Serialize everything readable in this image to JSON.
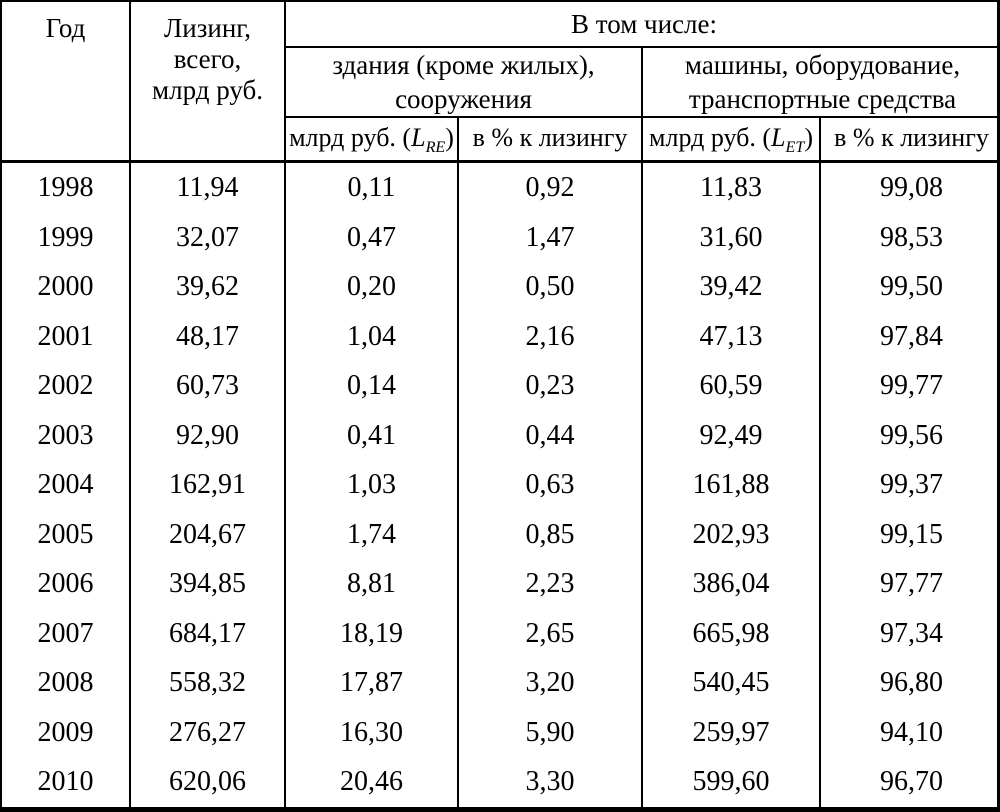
{
  "table": {
    "header": {
      "year": "Год",
      "leasing_total": "Лизинг,\nвсего,\nмлрд руб.",
      "including": "В том числе:",
      "group_buildings": "здания (кроме жилых),\nсооружения",
      "group_machines": "машины, оборудование,\nтранспортные средства",
      "sub_bln_re": {
        "prefix": "млрд руб. (",
        "var": "L",
        "sub": "RE",
        "suffix": ")"
      },
      "sub_pct_re": "в % к лизингу",
      "sub_bln_et": {
        "prefix": "млрд руб. (",
        "var": "L",
        "sub": "ET",
        "suffix": ")"
      },
      "sub_pct_et": "в % к лизингу"
    },
    "column_keys": [
      "year",
      "leasing-total",
      "buildings-bln",
      "buildings-pct",
      "machines-bln",
      "machines-pct"
    ],
    "rows": [
      [
        "1998",
        "11,94",
        "0,11",
        "0,92",
        "11,83",
        "99,08"
      ],
      [
        "1999",
        "32,07",
        "0,47",
        "1,47",
        "31,60",
        "98,53"
      ],
      [
        "2000",
        "39,62",
        "0,20",
        "0,50",
        "39,42",
        "99,50"
      ],
      [
        "2001",
        "48,17",
        "1,04",
        "2,16",
        "47,13",
        "97,84"
      ],
      [
        "2002",
        "60,73",
        "0,14",
        "0,23",
        "60,59",
        "99,77"
      ],
      [
        "2003",
        "92,90",
        "0,41",
        "0,44",
        "92,49",
        "99,56"
      ],
      [
        "2004",
        "162,91",
        "1,03",
        "0,63",
        "161,88",
        "99,37"
      ],
      [
        "2005",
        "204,67",
        "1,74",
        "0,85",
        "202,93",
        "99,15"
      ],
      [
        "2006",
        "394,85",
        "8,81",
        "2,23",
        "386,04",
        "97,77"
      ],
      [
        "2007",
        "684,17",
        "18,19",
        "2,65",
        "665,98",
        "97,34"
      ],
      [
        "2008",
        "558,32",
        "17,87",
        "3,20",
        "540,45",
        "96,80"
      ],
      [
        "2009",
        "276,27",
        "16,30",
        "5,90",
        "259,97",
        "94,10"
      ],
      [
        "2010",
        "620,06",
        "20,46",
        "3,30",
        "599,60",
        "96,70"
      ]
    ],
    "colors": {
      "border": "#000000",
      "text": "#000000",
      "background": "#ffffff"
    }
  }
}
